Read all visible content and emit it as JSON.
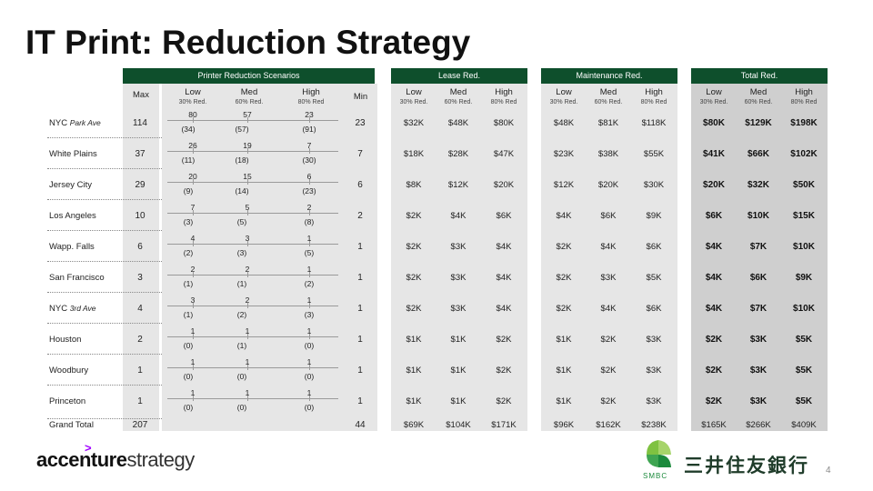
{
  "title": "IT Print: Reduction Strategy",
  "groups": {
    "scenarios": "Printer Reduction Scenarios",
    "lease": "Lease Red.",
    "maintenance": "Maintenance Red.",
    "total": "Total Red."
  },
  "cols": {
    "max": "Max",
    "min": "Min",
    "scen": [
      {
        "label": "Low",
        "sub": "30% Red."
      },
      {
        "label": "Med",
        "sub": "60% Red."
      },
      {
        "label": "High",
        "sub": "80% Red"
      }
    ],
    "red": [
      {
        "label": "Low",
        "sub": "30% Red."
      },
      {
        "label": "Med",
        "sub": "60% Red."
      },
      {
        "label": "High",
        "sub": "80% Red"
      }
    ]
  },
  "rows": [
    {
      "name": "NYC ",
      "name_italic": "Park Ave",
      "max": "114",
      "low": "80",
      "med": "57",
      "high": "23",
      "red_low": "(34)",
      "red_med": "(57)",
      "red_high": "(91)",
      "min": "23",
      "lease": [
        "$32K",
        "$48K",
        "$80K"
      ],
      "maint": [
        "$48K",
        "$81K",
        "$118K"
      ],
      "total": [
        "$80K",
        "$129K",
        "$198K"
      ]
    },
    {
      "name": "White Plains",
      "name_italic": "",
      "max": "37",
      "low": "26",
      "med": "19",
      "high": "7",
      "red_low": "(11)",
      "red_med": "(18)",
      "red_high": "(30)",
      "min": "7",
      "lease": [
        "$18K",
        "$28K",
        "$47K"
      ],
      "maint": [
        "$23K",
        "$38K",
        "$55K"
      ],
      "total": [
        "$41K",
        "$66K",
        "$102K"
      ]
    },
    {
      "name": "Jersey City",
      "name_italic": "",
      "max": "29",
      "low": "20",
      "med": "15",
      "high": "6",
      "red_low": "(9)",
      "red_med": "(14)",
      "red_high": "(23)",
      "min": "6",
      "lease": [
        "$8K",
        "$12K",
        "$20K"
      ],
      "maint": [
        "$12K",
        "$20K",
        "$30K"
      ],
      "total": [
        "$20K",
        "$32K",
        "$50K"
      ]
    },
    {
      "name": "Los Angeles",
      "name_italic": "",
      "max": "10",
      "low": "7",
      "med": "5",
      "high": "2",
      "red_low": "(3)",
      "red_med": "(5)",
      "red_high": "(8)",
      "min": "2",
      "lease": [
        "$2K",
        "$4K",
        "$6K"
      ],
      "maint": [
        "$4K",
        "$6K",
        "$9K"
      ],
      "total": [
        "$6K",
        "$10K",
        "$15K"
      ]
    },
    {
      "name": "Wapp. Falls",
      "name_italic": "",
      "max": "6",
      "low": "4",
      "med": "3",
      "high": "1",
      "red_low": "(2)",
      "red_med": "(3)",
      "red_high": "(5)",
      "min": "1",
      "lease": [
        "$2K",
        "$3K",
        "$4K"
      ],
      "maint": [
        "$2K",
        "$4K",
        "$6K"
      ],
      "total": [
        "$4K",
        "$7K",
        "$10K"
      ]
    },
    {
      "name": "San Francisco",
      "name_italic": "",
      "max": "3",
      "low": "2",
      "med": "2",
      "high": "1",
      "red_low": "(1)",
      "red_med": "(1)",
      "red_high": "(2)",
      "min": "1",
      "lease": [
        "$2K",
        "$3K",
        "$4K"
      ],
      "maint": [
        "$2K",
        "$3K",
        "$5K"
      ],
      "total": [
        "$4K",
        "$6K",
        "$9K"
      ]
    },
    {
      "name": "NYC ",
      "name_italic": "3rd Ave",
      "max": "4",
      "low": "3",
      "med": "2",
      "high": "1",
      "red_low": "(1)",
      "red_med": "(2)",
      "red_high": "(3)",
      "min": "1",
      "lease": [
        "$2K",
        "$3K",
        "$4K"
      ],
      "maint": [
        "$2K",
        "$4K",
        "$6K"
      ],
      "total": [
        "$4K",
        "$7K",
        "$10K"
      ]
    },
    {
      "name": "Houston",
      "name_italic": "",
      "max": "2",
      "low": "1",
      "med": "1",
      "high": "1",
      "red_low": "(0)",
      "red_med": "(1)",
      "red_high": "(0)",
      "min": "1",
      "lease": [
        "$1K",
        "$1K",
        "$2K"
      ],
      "maint": [
        "$1K",
        "$2K",
        "$3K"
      ],
      "total": [
        "$2K",
        "$3K",
        "$5K"
      ]
    },
    {
      "name": "Woodbury",
      "name_italic": "",
      "max": "1",
      "low": "1",
      "med": "1",
      "high": "1",
      "red_low": "(0)",
      "red_med": "(0)",
      "red_high": "(0)",
      "min": "1",
      "lease": [
        "$1K",
        "$1K",
        "$2K"
      ],
      "maint": [
        "$1K",
        "$2K",
        "$3K"
      ],
      "total": [
        "$2K",
        "$3K",
        "$5K"
      ]
    },
    {
      "name": "Princeton",
      "name_italic": "",
      "max": "1",
      "low": "1",
      "med": "1",
      "high": "1",
      "red_low": "(0)",
      "red_med": "(0)",
      "red_high": "(0)",
      "min": "1",
      "lease": [
        "$1K",
        "$1K",
        "$2K"
      ],
      "maint": [
        "$1K",
        "$2K",
        "$3K"
      ],
      "total": [
        "$2K",
        "$3K",
        "$5K"
      ]
    }
  ],
  "grand_total": {
    "label": "Grand Total",
    "max": "207",
    "min": "44",
    "lease": [
      "$69K",
      "$104K",
      "$171K"
    ],
    "maint": [
      "$96K",
      "$162K",
      "$238K"
    ],
    "total": [
      "$165K",
      "$266K",
      "$409K"
    ]
  },
  "logos": {
    "accenture_bold": "accenture",
    "accenture_light": "strategy",
    "accenture_mark": ">",
    "smbc_label": "SMBC",
    "smbc_jp": "三井住友銀行"
  },
  "page_number": "4"
}
